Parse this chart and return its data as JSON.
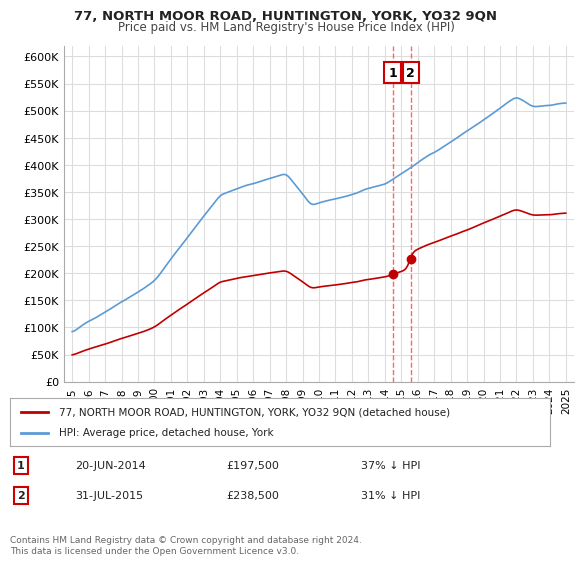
{
  "title": "77, NORTH MOOR ROAD, HUNTINGTON, YORK, YO32 9QN",
  "subtitle": "Price paid vs. HM Land Registry's House Price Index (HPI)",
  "ylabel_ticks": [
    "£0",
    "£50K",
    "£100K",
    "£150K",
    "£200K",
    "£250K",
    "£300K",
    "£350K",
    "£400K",
    "£450K",
    "£500K",
    "£550K",
    "£600K"
  ],
  "ytick_values": [
    0,
    50000,
    100000,
    150000,
    200000,
    250000,
    300000,
    350000,
    400000,
    450000,
    500000,
    550000,
    600000
  ],
  "ylim": [
    0,
    620000
  ],
  "xlim_start": 1994.5,
  "xlim_end": 2025.5,
  "hpi_color": "#5b9bd5",
  "price_color": "#c00000",
  "marker_color": "#c00000",
  "vline_color": "#ff6666",
  "legend_label_price": "77, NORTH MOOR ROAD, HUNTINGTON, YORK, YO32 9QN (detached house)",
  "legend_label_hpi": "HPI: Average price, detached house, York",
  "transaction1_date": "20-JUN-2014",
  "transaction1_price": "£197,500",
  "transaction1_pct": "37% ↓ HPI",
  "transaction2_date": "31-JUL-2015",
  "transaction2_price": "£238,500",
  "transaction2_pct": "31% ↓ HPI",
  "footer": "Contains HM Land Registry data © Crown copyright and database right 2024.\nThis data is licensed under the Open Government Licence v3.0.",
  "background_color": "#ffffff",
  "grid_color": "#dddddd",
  "transaction1_x": 2014.47,
  "transaction2_x": 2015.58,
  "transaction1_y": 197500,
  "transaction2_y": 238500
}
